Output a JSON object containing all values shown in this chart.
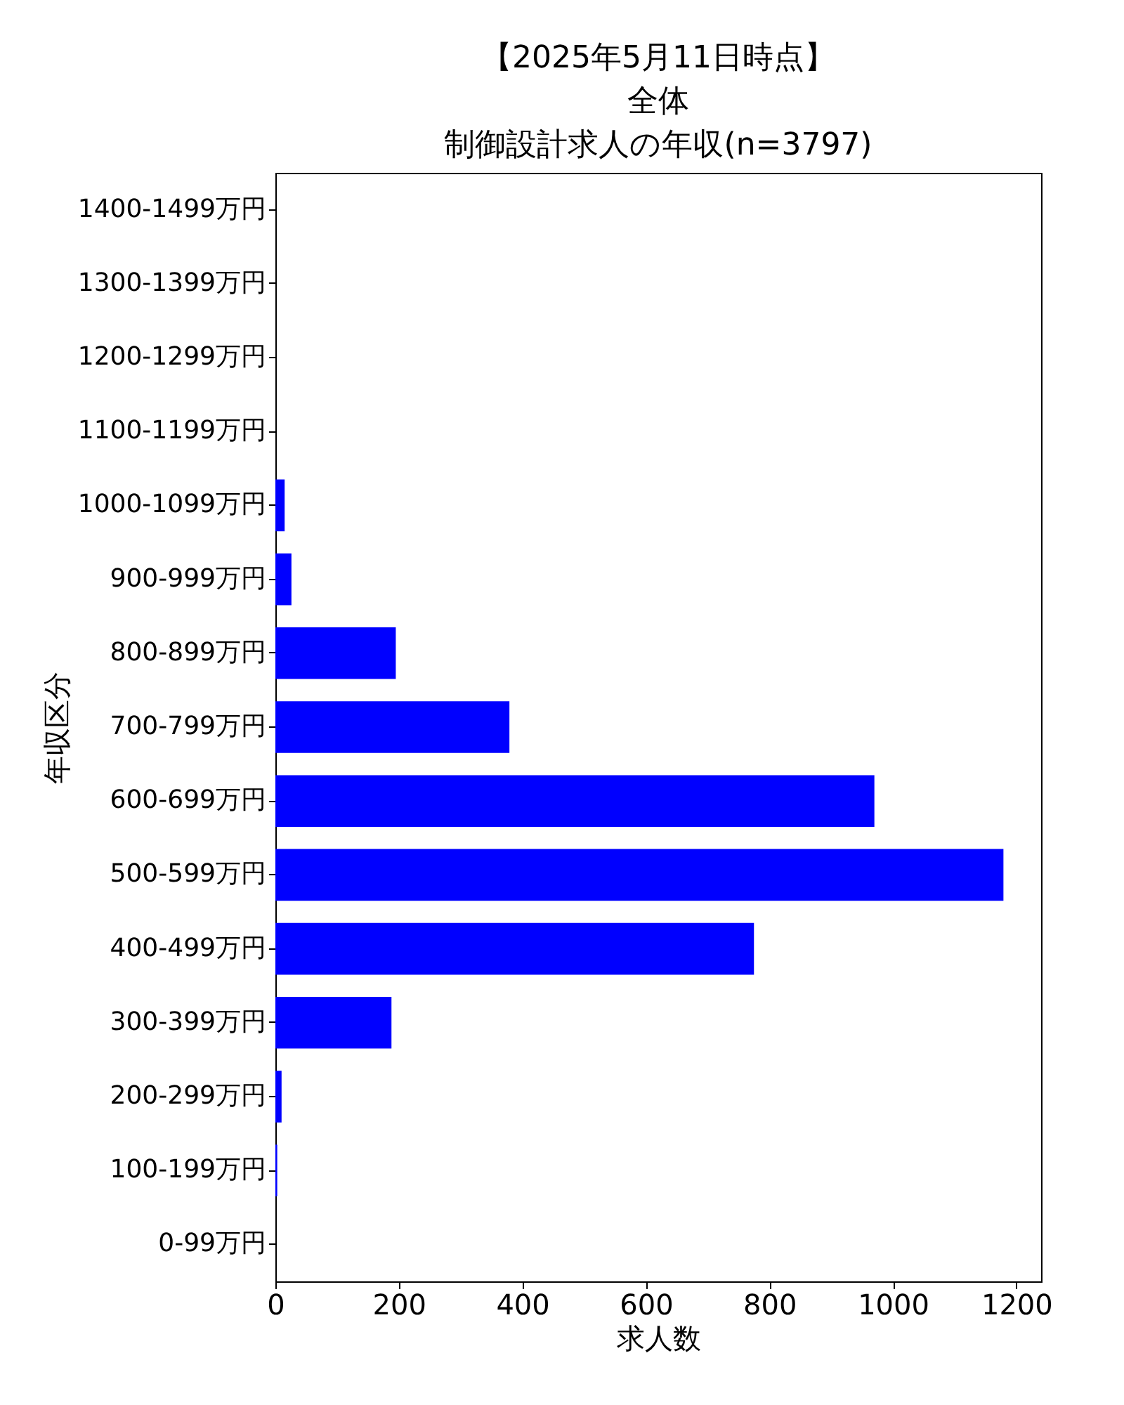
{
  "chart_data": {
    "type": "bar",
    "orientation": "horizontal",
    "title": "【2025年5月11日時点】",
    "subtitle": "全体",
    "annotations": [
      "制御設計求人の年収(n=3797)"
    ],
    "xlabel": "求人数",
    "ylabel": "年収区分",
    "categories": [
      "1400-1499万円",
      "1300-1399万円",
      "1200-1299万円",
      "1100-1199万円",
      "1000-1099万円",
      "900-999万円",
      "800-899万円",
      "700-799万円",
      "600-699万円",
      "500-599万円",
      "400-499万円",
      "300-399万円",
      "200-299万円",
      "100-199万円",
      "0-99万円"
    ],
    "values": [
      0,
      0,
      0,
      0,
      15,
      26,
      195,
      379,
      970,
      1179,
      775,
      188,
      10,
      3,
      0
    ],
    "color": "#0000ff",
    "xlim": [
      0,
      1240
    ],
    "xticks": [
      0,
      200,
      400,
      600,
      800,
      1000,
      1200
    ],
    "grid": false
  }
}
